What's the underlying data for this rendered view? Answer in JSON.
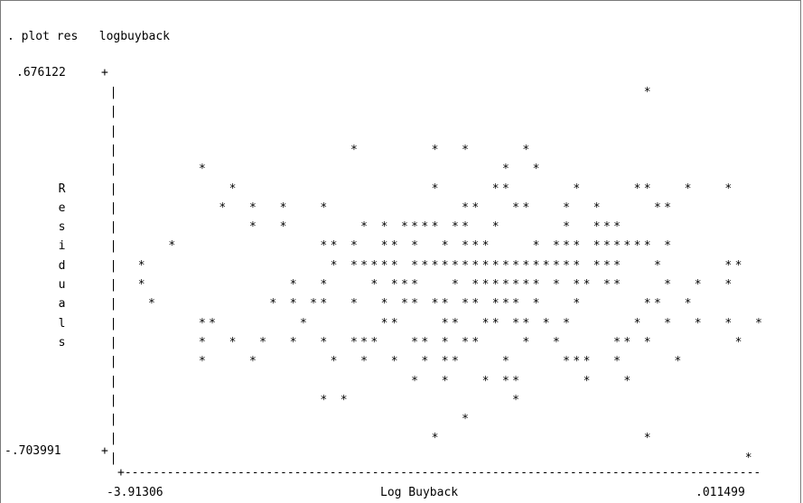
{
  "command_line": ". plot res   logbuyback",
  "chart_data": {
    "type": "scatter",
    "title": "",
    "ylabel": "Residuals",
    "xlabel": "Log Buyback",
    "y_max_label": ".676122",
    "y_min_label": "-.703991",
    "x_min_label": "-3.91306",
    "x_max_label": ".011499",
    "ylim": [
      -0.703991,
      0.676122
    ],
    "xlim": [
      -3.91306,
      0.011499
    ],
    "grid": false,
    "marker": "*",
    "rows": [
      "                                                   *          ",
      "",
      "",
      "                      *       *  *     *                      ",
      "       *                             *  *                     ",
      "          *                   *     **      *     **   *   * ",
      "         *  *  *   *             **   **   *  *     **       ",
      "            *  *       * * **** **  *      *  ***            ",
      "    *              ** *  ** *  * ***    * *** ****** *        ",
      " *                  * ***** ***************** ***   *      ** ",
      " *              *  *    * ***   * ******* * ** **    *  *  *  ",
      "  *           * * **  *  * ** ** ** *** *   *      **  *      ",
      "       **        *       **    **  ** ** * *      *  *  *  *  *",
      "       *  *  *  *  *  ***   ** * **    *  *     ** *        *  ",
      "       *    *       *  *  *  * **    *     ***  *     *        ",
      "                            *  *   * **      *   *            ",
      "                   * *                *                       ",
      "                                 *                            ",
      "                              *                    *          ",
      "                                                             *"
    ]
  },
  "axes": {
    "y_top_tick": "+",
    "y_bottom_tick": "+",
    "y_axis_char": "|",
    "x_axis_line": "+---------------------------------------------------------------------------------------------------+"
  }
}
